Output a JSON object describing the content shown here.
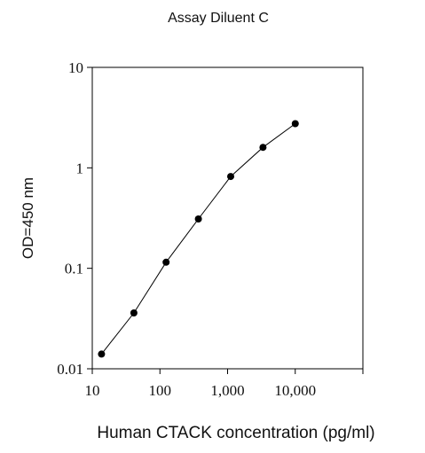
{
  "chart_data": {
    "type": "line",
    "title": "Assay Diluent C",
    "xlabel": "Human CTACK concentration (pg/ml)",
    "ylabel": "OD=450 nm",
    "x_scale": "log",
    "y_scale": "log",
    "xlim": [
      10,
      100000
    ],
    "ylim": [
      0.01,
      10
    ],
    "x_ticks": [
      {
        "value": 10,
        "label": "10"
      },
      {
        "value": 100,
        "label": "100"
      },
      {
        "value": 1000,
        "label": "1,000"
      },
      {
        "value": 10000,
        "label": "10,000"
      },
      {
        "value": 100000,
        "label": ""
      }
    ],
    "y_ticks": [
      {
        "value": 0.01,
        "label": "0.01"
      },
      {
        "value": 0.1,
        "label": "0.1"
      },
      {
        "value": 1,
        "label": "1"
      },
      {
        "value": 10,
        "label": "10"
      }
    ],
    "grid": false,
    "legend": "none",
    "series": [
      {
        "x": [
          13.7,
          41.2,
          123.5,
          370.4,
          1111,
          3333,
          10000
        ],
        "y": [
          0.014,
          0.036,
          0.115,
          0.31,
          0.82,
          1.6,
          2.75
        ]
      }
    ]
  }
}
